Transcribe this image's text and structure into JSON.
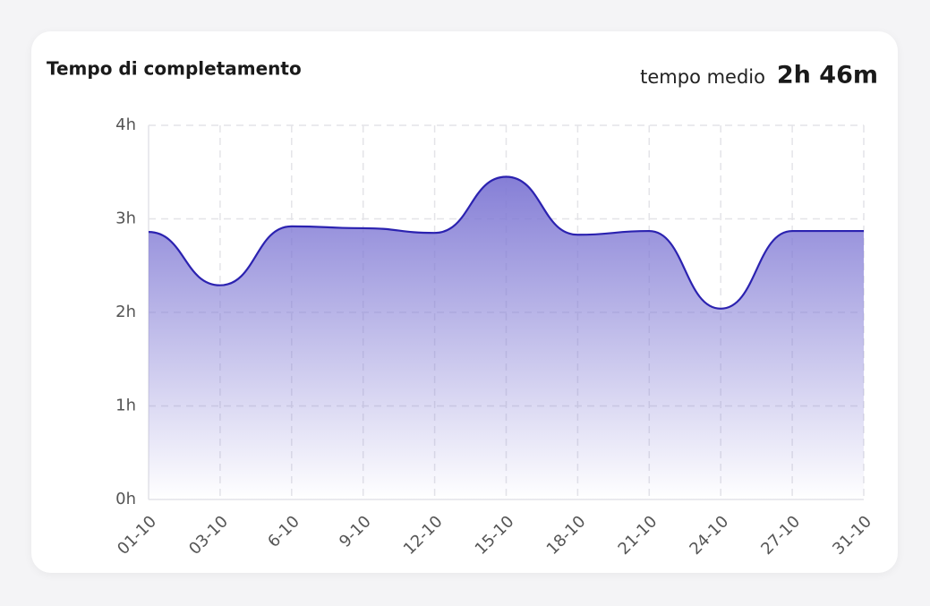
{
  "header": {
    "title": "Tempo di completamento",
    "average_label": "tempo medio",
    "average_value": "2h 46m"
  },
  "chart_data": {
    "type": "area",
    "categories": [
      "01-10",
      "03-10",
      "6-10",
      "9-10",
      "12-10",
      "15-10",
      "18-10",
      "21-10",
      "24-10",
      "27-10",
      "31-10"
    ],
    "series": [
      {
        "name": "tempo",
        "color": "#2b22b0",
        "values": [
          2.86,
          2.29,
          2.92,
          2.9,
          2.85,
          3.45,
          2.83,
          2.87,
          2.04,
          2.87,
          2.87
        ]
      }
    ],
    "ylim": [
      0,
      4
    ],
    "yticks": [
      {
        "value": 0,
        "label": "0h"
      },
      {
        "value": 1,
        "label": "1h"
      },
      {
        "value": 2,
        "label": "2h"
      },
      {
        "value": 3,
        "label": "3h"
      },
      {
        "value": 4,
        "label": "4h"
      }
    ],
    "grid": true
  }
}
